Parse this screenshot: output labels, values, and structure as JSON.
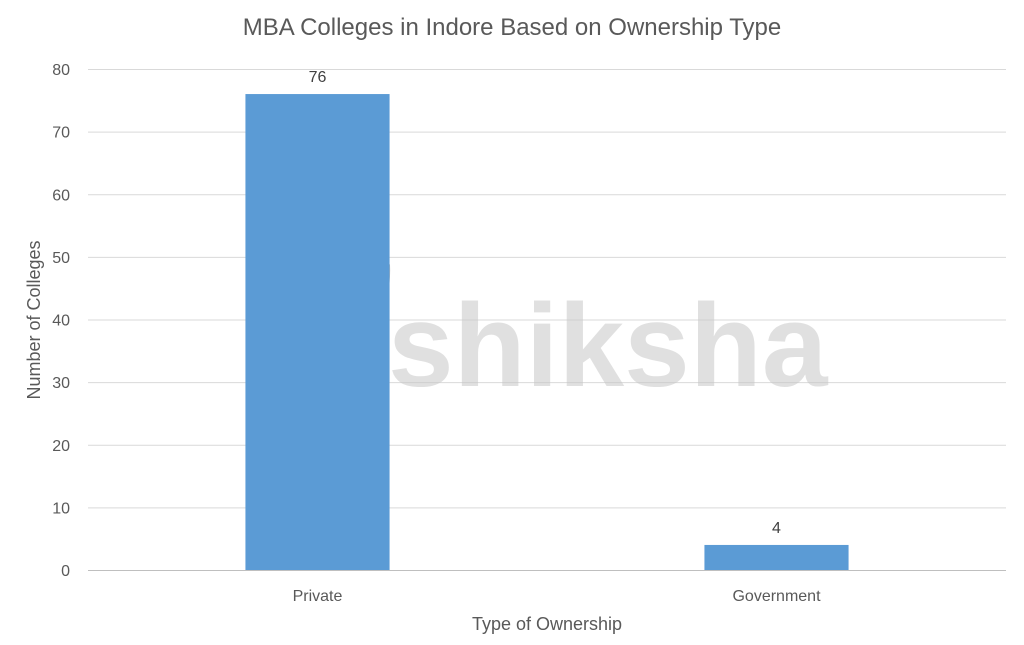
{
  "chart_data": {
    "type": "bar",
    "title": "MBA Colleges in Indore Based on Ownership Type",
    "xlabel": "Type of Ownership",
    "ylabel": "Number of Colleges",
    "categories": [
      "Private",
      "Government"
    ],
    "values": [
      76,
      4
    ],
    "data_labels": [
      "76",
      "4"
    ],
    "ylim": [
      0,
      80
    ],
    "yticks": [
      "0",
      "10",
      "20",
      "30",
      "40",
      "50",
      "60",
      "70",
      "80"
    ],
    "grid": true,
    "legend": "none",
    "bar_color": "#5b9bd5",
    "grid_color": "#d9d9d9"
  },
  "watermark": {
    "text": "shiksha",
    "icon": "graduation-cap-pen-nib-logo"
  }
}
